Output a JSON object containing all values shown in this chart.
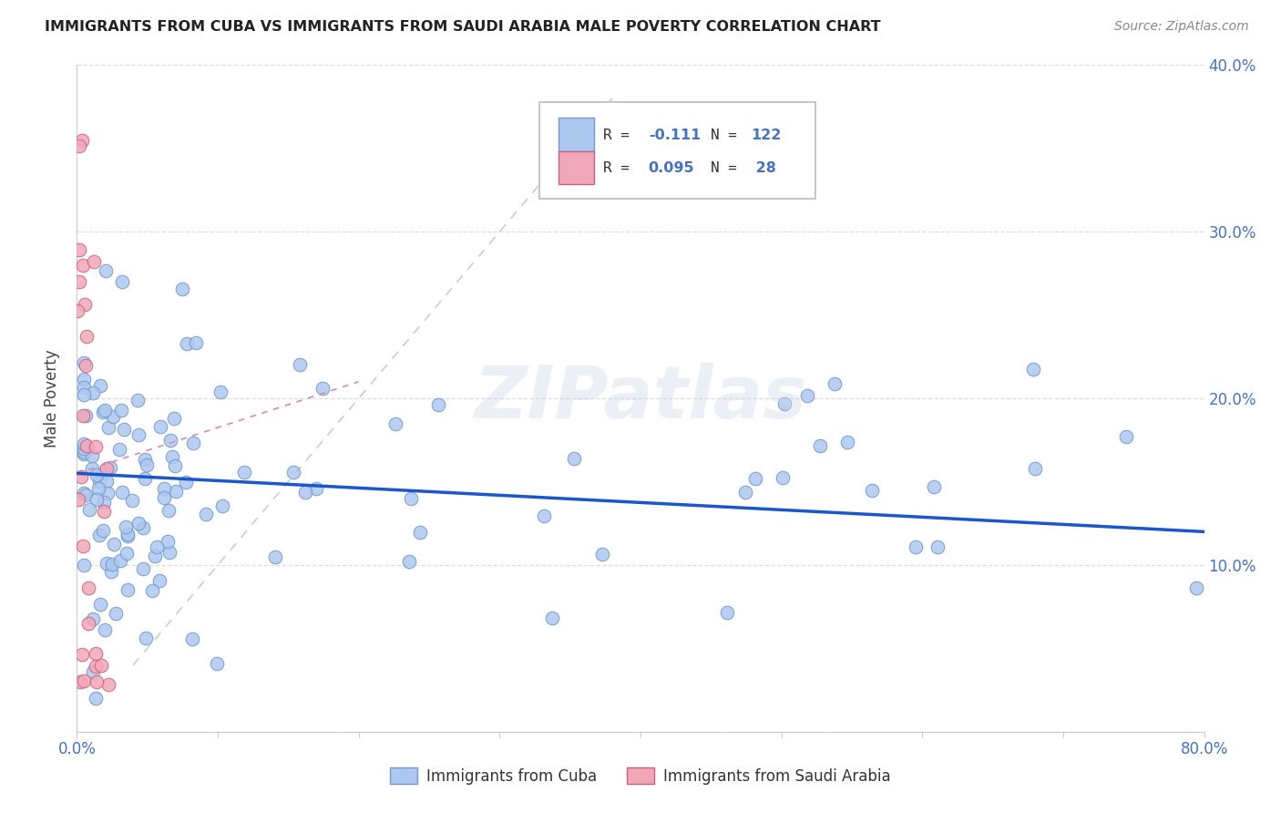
{
  "title": "IMMIGRANTS FROM CUBA VS IMMIGRANTS FROM SAUDI ARABIA MALE POVERTY CORRELATION CHART",
  "source": "Source: ZipAtlas.com",
  "ylabel": "Male Poverty",
  "x_min": 0.0,
  "x_max": 0.8,
  "y_min": 0.0,
  "y_max": 0.4,
  "cuba_color": "#adc8f0",
  "saudi_color": "#f0a8b8",
  "cuba_edge": "#7099cc",
  "saudi_edge": "#d06080",
  "trend_cuba_color": "#1a56cc",
  "diagonal_color": "#cccccc",
  "R_cuba": -0.111,
  "N_cuba": 122,
  "R_saudi": 0.095,
  "N_saudi": 28,
  "legend_label_cuba": "Immigrants from Cuba",
  "legend_label_saudi": "Immigrants from Saudi Arabia",
  "watermark": "ZIPatlas",
  "tick_color": "#4472c4",
  "grid_color": "#dddddd",
  "title_color": "#222222",
  "source_color": "#888888",
  "ylabel_color": "#444444"
}
